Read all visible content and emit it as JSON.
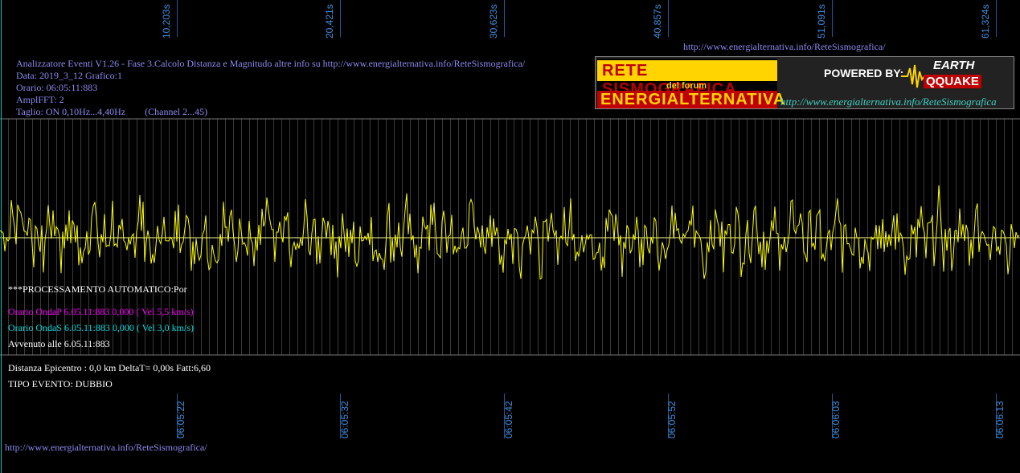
{
  "header": {
    "top_url": "http://www.energialternativa.info/ReteSismografica/",
    "info_lines": [
      "Analizzatore Eventi V1.26 - Fase 3.Calcolo Distanza e Magnitudo altre info su http://www.energialternativa.info/ReteSismografica/",
      "Data: 2019_3_12 Grafico:1",
      "Orario: 06:05:11:883",
      "AmplFFT: 2",
      "Taglio: ON 0,10Hz...4,40Hz        (Channel 2...45)"
    ]
  },
  "logo": {
    "line1": "RETE SISMOGRAFICA",
    "line2": "del forum",
    "line3": "ENERGIALTERNATIVA",
    "powered": "POWERED BY:",
    "earth": "EARTH",
    "quake": "QQUAKE",
    "url": "http://www.energialternativa.info/ReteSismografica"
  },
  "top_ticks": [
    "10,203s",
    "20,421s",
    "30,623s",
    "40,857s",
    "51,091s",
    "61,324s"
  ],
  "bottom_ticks": [
    "06:05:22",
    "06:05:32",
    "06:05:42",
    "06:05:52",
    "06:06:03",
    "06:06:13"
  ],
  "processing": {
    "title": "***PROCESSAMENTO AUTOMATICO:Por",
    "wave_p": "Orario OndaP 6.05.11:883  0,000 ( Vel 5,5 km/s)",
    "wave_s": "Orario OndaS 6.05.11:883  0,000 ( Vel 3,0 km/s)",
    "occurred": "Avvenuto alle 6.05.11:883"
  },
  "footer": {
    "distance": "Distanza Epicentro : 0,0 km DeltaT= 0,00s  Fatt:6,60",
    "event_type": "TIPO EVENTO: DUBBIO",
    "url": "http://www.energialternativa.info/ReteSismografica/"
  },
  "colors": {
    "trace": "#ffff00",
    "wave_p": "#ff00ff",
    "wave_s": "#00e0e0",
    "axis_text": "#3f8fe0",
    "info_text": "#8b8bf0"
  },
  "chart_data": {
    "type": "line",
    "title": "",
    "xlabel": "",
    "ylabel": "",
    "x_ticks_seconds": [
      10.203,
      20.421,
      30.623,
      40.857,
      51.091,
      61.324
    ],
    "x_ticks_time": [
      "06:05:22",
      "06:05:32",
      "06:05:42",
      "06:05:52",
      "06:06:03",
      "06:06:13"
    ],
    "grid": true,
    "series": [
      {
        "values": [
          0,
          0.4,
          0.9,
          0.3,
          -0.5,
          0.8,
          -0.2,
          0.6,
          -0.8,
          0.9,
          -0.3,
          0.5,
          -0.6,
          0.2,
          0.7,
          -0.9,
          0.4,
          -0.2,
          0.8,
          -0.5,
          0.3,
          -0.7,
          0.6,
          -0.1,
          0.5,
          -0.6,
          0.9,
          -0.4,
          0.2,
          -0.8,
          0.5,
          -0.3,
          0.7,
          -0.5,
          0.1,
          -0.4,
          0.6,
          -0.9,
          0.3,
          -0.2,
          0.5,
          -0.6,
          0.8,
          -0.3,
          0.4,
          -0.7,
          0.9,
          -0.2,
          0.6,
          -0.5,
          0.2,
          -0.4,
          0.7,
          -0.8,
          0.5,
          -0.1,
          0.6,
          -0.4,
          0.3,
          -0.6,
          0.8,
          -0.5,
          0.2,
          -0.3,
          0.5,
          -0.7,
          0.4,
          -0.2,
          0.6,
          -0.9,
          0.7,
          -0.3,
          0.5,
          -0.4,
          0.8,
          -0.6,
          0.3,
          -0.5,
          0.9,
          -0.2,
          0.4,
          -0.7,
          0.6,
          -0.3,
          0.2,
          -0.5,
          0.7,
          -0.4,
          0.5,
          -0.8,
          0.3,
          -0.2,
          0.6,
          -0.5,
          0.4,
          -0.3,
          0.8,
          -0.6,
          0.5,
          -0.4,
          0.3
        ]
      }
    ]
  }
}
